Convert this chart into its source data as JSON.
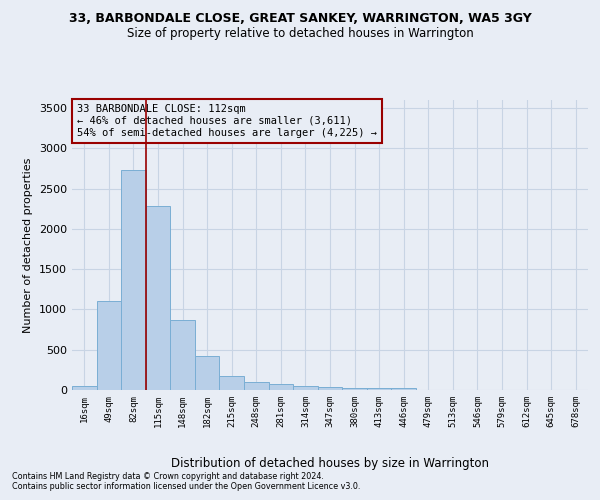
{
  "title": "33, BARBONDALE CLOSE, GREAT SANKEY, WARRINGTON, WA5 3GY",
  "subtitle": "Size of property relative to detached houses in Warrington",
  "xlabel": "Distribution of detached houses by size in Warrington",
  "ylabel": "Number of detached properties",
  "categories": [
    "16sqm",
    "49sqm",
    "82sqm",
    "115sqm",
    "148sqm",
    "182sqm",
    "215sqm",
    "248sqm",
    "281sqm",
    "314sqm",
    "347sqm",
    "380sqm",
    "413sqm",
    "446sqm",
    "479sqm",
    "513sqm",
    "546sqm",
    "579sqm",
    "612sqm",
    "645sqm",
    "678sqm"
  ],
  "values": [
    50,
    1100,
    2730,
    2290,
    875,
    425,
    170,
    95,
    70,
    55,
    35,
    30,
    30,
    25,
    5,
    5,
    0,
    0,
    0,
    0,
    0
  ],
  "bar_color": "#b8cfe8",
  "bar_edge_color": "#7aaed4",
  "grid_color": "#c8d4e4",
  "background_color": "#e8edf5",
  "annotation_box_text": "33 BARBONDALE CLOSE: 112sqm\n← 46% of detached houses are smaller (3,611)\n54% of semi-detached houses are larger (4,225) →",
  "vline_color": "#990000",
  "footer1": "Contains HM Land Registry data © Crown copyright and database right 2024.",
  "footer2": "Contains public sector information licensed under the Open Government Licence v3.0.",
  "ylim": [
    0,
    3600
  ],
  "yticks": [
    0,
    500,
    1000,
    1500,
    2000,
    2500,
    3000,
    3500
  ]
}
